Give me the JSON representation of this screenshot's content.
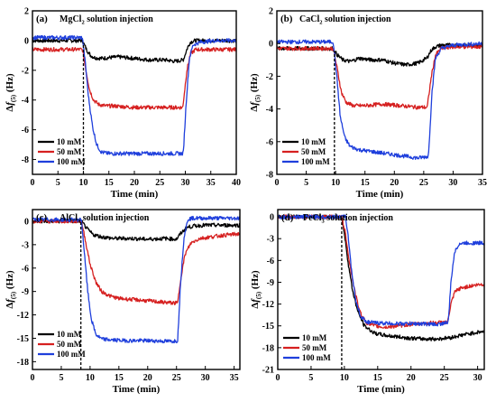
{
  "chart_data": [
    {
      "type": "line",
      "panel_label": "(a)",
      "title_parts": [
        "MgCl",
        "2",
        " solution injection"
      ],
      "xlabel": "Time (min)",
      "ylabel_parts": [
        "Δ",
        "f",
        "(5)",
        " (Hz)"
      ],
      "xlim": [
        0,
        40
      ],
      "ylim": [
        -9,
        2
      ],
      "xticks": [
        0,
        5,
        10,
        15,
        20,
        25,
        30,
        35,
        40
      ],
      "yticks": [
        2,
        0,
        -2,
        -4,
        -6,
        -8
      ],
      "injection_time": 10,
      "series": [
        {
          "name": "10 mM",
          "color": "#000000",
          "x": [
            0,
            9.8,
            10.6,
            11.4,
            12.2,
            13.5,
            15,
            17,
            20,
            23,
            26,
            28,
            29.6,
            30.4,
            31,
            32,
            34,
            37,
            40
          ],
          "y": [
            0,
            0,
            -0.6,
            -1.0,
            -1.15,
            -1.2,
            -1.15,
            -1.1,
            -1.2,
            -1.3,
            -1.3,
            -1.4,
            -1.3,
            -0.5,
            -0.1,
            0,
            0,
            0,
            0
          ]
        },
        {
          "name": "50 mM",
          "color": "#d62020",
          "x": [
            0,
            9.8,
            10.5,
            11.2,
            12,
            13,
            14.5,
            16,
            20,
            25,
            29.5,
            30.3,
            31,
            32,
            35,
            40
          ],
          "y": [
            -0.6,
            -0.6,
            -2.0,
            -3.3,
            -4.0,
            -4.3,
            -4.4,
            -4.4,
            -4.5,
            -4.5,
            -4.5,
            -2.0,
            -0.9,
            -0.6,
            -0.6,
            -0.6
          ]
        },
        {
          "name": "100 mM",
          "color": "#1f3fdc",
          "x": [
            0,
            9.8,
            10.4,
            11,
            11.8,
            12.6,
            13.5,
            15,
            18,
            22,
            26,
            29.6,
            30.2,
            30.8,
            31.5,
            33,
            36,
            40
          ],
          "y": [
            0.2,
            0.2,
            -1.6,
            -3.8,
            -5.8,
            -7.0,
            -7.5,
            -7.6,
            -7.6,
            -7.6,
            -7.6,
            -7.6,
            -4.0,
            -1.2,
            -0.3,
            -0.1,
            0,
            0
          ]
        }
      ]
    },
    {
      "type": "line",
      "panel_label": "(b)",
      "title_parts": [
        "CaCl",
        "2",
        " solution injection"
      ],
      "xlabel": "Time (min)",
      "ylabel_parts": [
        "Δ",
        "f",
        "(5)",
        " (Hz)"
      ],
      "xlim": [
        0,
        35
      ],
      "ylim": [
        -8,
        2
      ],
      "xticks": [
        0,
        5,
        10,
        15,
        20,
        25,
        30,
        35
      ],
      "yticks": [
        2,
        0,
        -2,
        -4,
        -6,
        -8
      ],
      "injection_time": 9.8,
      "series": [
        {
          "name": "10 mM",
          "color": "#000000",
          "x": [
            0,
            9.5,
            10.3,
            11.2,
            12.5,
            14,
            16,
            18,
            20,
            22,
            24,
            25.5,
            26.3,
            27,
            28,
            30,
            35
          ],
          "y": [
            -0.3,
            -0.3,
            -0.7,
            -1.0,
            -1.1,
            -0.9,
            -1.0,
            -1.0,
            -1.2,
            -1.3,
            -1.2,
            -0.9,
            -0.4,
            -0.2,
            -0.1,
            -0.1,
            -0.1
          ]
        },
        {
          "name": "50 mM",
          "color": "#d62020",
          "x": [
            0,
            9.6,
            10.3,
            11,
            11.8,
            13,
            15,
            18,
            21,
            24,
            25.6,
            26.3,
            27,
            28,
            30,
            35
          ],
          "y": [
            -0.3,
            -0.3,
            -1.6,
            -3.0,
            -3.6,
            -3.8,
            -3.8,
            -3.7,
            -3.8,
            -3.9,
            -3.9,
            -2.0,
            -0.7,
            -0.3,
            -0.2,
            -0.2
          ]
        },
        {
          "name": "100 mM",
          "color": "#1f3fdc",
          "x": [
            0,
            9.6,
            10.2,
            10.8,
            11.6,
            12.5,
            14,
            16,
            18,
            20,
            22,
            24,
            25.8,
            26.4,
            27,
            28,
            30,
            35
          ],
          "y": [
            0.1,
            0.1,
            -2.0,
            -4.5,
            -5.8,
            -6.3,
            -6.5,
            -6.6,
            -6.7,
            -6.8,
            -6.9,
            -7.0,
            -6.9,
            -3.0,
            -0.9,
            -0.3,
            -0.1,
            0
          ]
        }
      ]
    },
    {
      "type": "line",
      "panel_label": "(c)",
      "title_parts": [
        "AlCl",
        "3",
        " solution injection"
      ],
      "xlabel": "Time (min)",
      "ylabel_parts": [
        "Δ",
        "f",
        "(5)",
        " (Hz)"
      ],
      "xlim": [
        0,
        36
      ],
      "ylim": [
        -19,
        1.5
      ],
      "xticks": [
        0,
        5,
        10,
        15,
        20,
        25,
        30,
        35
      ],
      "yticks": [
        0,
        -3,
        -6,
        -9,
        -12,
        -15,
        -18
      ],
      "injection_time": 8.4,
      "series": [
        {
          "name": "10 mM",
          "color": "#000000",
          "x": [
            0,
            8.5,
            9.5,
            10.5,
            12,
            14,
            17,
            20,
            23,
            25,
            25.8,
            26.8,
            28,
            30,
            33,
            36
          ],
          "y": [
            0,
            0,
            -1.0,
            -1.7,
            -2.0,
            -2.2,
            -2.2,
            -2.3,
            -2.2,
            -2.3,
            -1.5,
            -0.8,
            -0.6,
            -0.5,
            -0.5,
            -0.5
          ]
        },
        {
          "name": "50 mM",
          "color": "#d62020",
          "x": [
            0,
            8.5,
            9.2,
            10,
            11,
            12,
            13.5,
            15,
            17,
            20,
            23,
            25.2,
            25.8,
            26.5,
            27.5,
            29,
            31,
            33,
            36
          ],
          "y": [
            0,
            0,
            -2.5,
            -5.5,
            -7.8,
            -9.0,
            -9.6,
            -9.9,
            -10.0,
            -10.2,
            -10.4,
            -10.5,
            -7.0,
            -4.2,
            -2.8,
            -2.2,
            -2.0,
            -1.8,
            -1.6
          ]
        },
        {
          "name": "100 mM",
          "color": "#1f3fdc",
          "x": [
            0,
            8.5,
            9,
            9.6,
            10.2,
            11,
            12,
            13.5,
            16,
            20,
            24,
            25.2,
            25.7,
            26.3,
            27,
            28,
            31,
            36
          ],
          "y": [
            0.2,
            0.2,
            -4.0,
            -9.0,
            -12.5,
            -14.5,
            -15.1,
            -15.2,
            -15.3,
            -15.3,
            -15.4,
            -15.3,
            -8.0,
            -2.0,
            0.3,
            0.4,
            0.4,
            0.4
          ]
        }
      ]
    },
    {
      "type": "line",
      "panel_label": "(d)",
      "title_parts": [
        "FeCl",
        "3",
        " solution injection"
      ],
      "xlabel": "Time (min)",
      "ylabel_parts": [
        "Δ",
        "f",
        "(5)",
        " (Hz)"
      ],
      "xlim": [
        0,
        31
      ],
      "ylim": [
        -21,
        1
      ],
      "xticks": [
        0,
        5,
        10,
        15,
        20,
        25,
        30
      ],
      "yticks": [
        0,
        -3,
        -6,
        -9,
        -12,
        -15,
        -18,
        -21
      ],
      "injection_time": 9.6,
      "series": [
        {
          "name": "10 mM",
          "color": "#000000",
          "x": [
            0,
            9.6,
            10.1,
            10.6,
            11.2,
            12,
            13,
            14.5,
            16,
            18,
            20,
            22,
            24,
            26,
            28,
            30.5
          ],
          "y": [
            0,
            0,
            -3.0,
            -6.5,
            -10.0,
            -13.0,
            -15.0,
            -16.0,
            -16.3,
            -16.5,
            -16.7,
            -16.8,
            -16.8,
            -16.6,
            -16.2,
            -15.8
          ]
        },
        {
          "name": "50 mM",
          "color": "#d62020",
          "x": [
            0,
            9.6,
            10.2,
            10.8,
            11.5,
            12.3,
            13.2,
            14.5,
            16,
            18,
            20,
            23,
            25.5,
            26,
            26.6,
            27.5,
            29,
            30.5
          ],
          "y": [
            0,
            0,
            -2.5,
            -6.5,
            -10.0,
            -13.0,
            -14.5,
            -15.0,
            -15.2,
            -15.0,
            -14.8,
            -14.6,
            -14.5,
            -12.0,
            -10.3,
            -9.8,
            -9.5,
            -9.3
          ]
        },
        {
          "name": "100 mM",
          "color": "#1f3fdc",
          "x": [
            0,
            10.2,
            10.6,
            11.1,
            11.7,
            12.5,
            13.5,
            15,
            18,
            21,
            24,
            25.6,
            26,
            26.5,
            27.2,
            28.5,
            30.5
          ],
          "y": [
            0,
            0,
            -3.0,
            -7.5,
            -11.5,
            -13.8,
            -14.5,
            -14.6,
            -14.7,
            -14.7,
            -14.8,
            -14.5,
            -9.0,
            -5.0,
            -3.7,
            -3.6,
            -3.6
          ]
        }
      ]
    }
  ]
}
